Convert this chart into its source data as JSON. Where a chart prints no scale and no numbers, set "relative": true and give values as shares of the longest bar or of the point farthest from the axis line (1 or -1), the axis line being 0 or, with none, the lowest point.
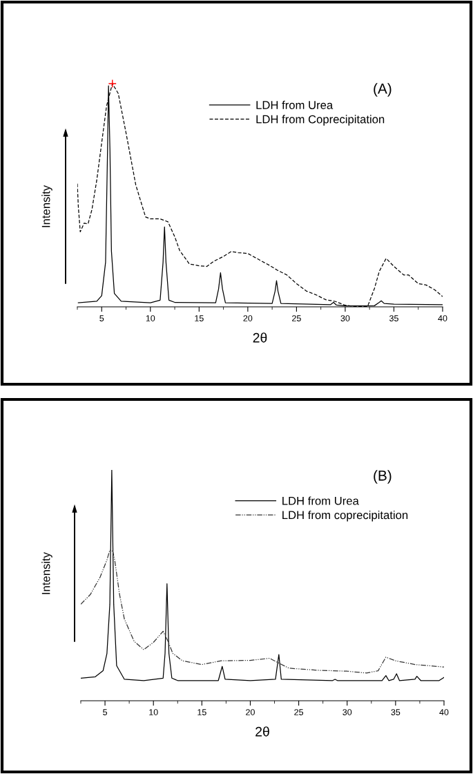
{
  "chart_data": [
    {
      "type": "line",
      "relative": true,
      "xlabel": "2θ",
      "ylabel": "Intensity",
      "annotations": [
        "(A)"
      ],
      "xlim": [
        2.5,
        40
      ],
      "xticks": [
        5,
        10,
        15,
        20,
        25,
        30,
        35,
        40
      ],
      "tick_labels": "x",
      "grid": false,
      "legend": "top right",
      "marker": "none",
      "series": [
        {
          "name": "LDH from Urea",
          "color": "#000000",
          "line_style": "solid",
          "x": [
            2.6,
            4.5,
            5.0,
            5.4,
            5.6,
            5.7,
            5.85,
            6.0,
            6.3,
            7,
            10,
            11.0,
            11.3,
            11.45,
            11.6,
            11.9,
            12.5,
            16.7,
            17.0,
            17.2,
            17.4,
            17.7,
            22.5,
            22.8,
            22.95,
            23.1,
            23.4,
            28.5,
            28.8,
            29.1,
            30,
            33,
            33.5,
            33.7,
            34,
            35,
            40
          ],
          "values": [
            0.018,
            0.025,
            0.05,
            0.2,
            0.7,
            0.99,
            0.7,
            0.25,
            0.06,
            0.025,
            0.018,
            0.03,
            0.2,
            0.358,
            0.2,
            0.03,
            0.02,
            0.018,
            0.08,
            0.153,
            0.08,
            0.018,
            0.015,
            0.07,
            0.117,
            0.07,
            0.015,
            0.01,
            0.02,
            0.008,
            0.004,
            0.005,
            0.02,
            0.027,
            0.015,
            0.012,
            0.01
          ]
        },
        {
          "name": "LDH from Coprecipitation",
          "color": "#000000",
          "line_style": "dashed",
          "x": [
            2.5,
            2.6,
            2.8,
            3.2,
            3.6,
            4.0,
            4.5,
            5.0,
            5.5,
            6.1,
            6.7,
            7.5,
            8.5,
            9.5,
            10,
            11,
            11.8,
            12.5,
            13,
            14,
            15,
            15.8,
            16.5,
            17.5,
            18.3,
            19,
            20,
            21,
            22.3,
            23,
            24,
            25,
            26,
            27,
            28,
            29,
            30,
            31,
            32.3,
            33,
            33.5,
            34.2,
            35,
            36,
            36.5,
            37.5,
            38.3,
            39.2,
            40
          ],
          "values": [
            0.552,
            0.45,
            0.336,
            0.375,
            0.372,
            0.436,
            0.569,
            0.735,
            0.9,
            1.0,
            0.956,
            0.779,
            0.546,
            0.403,
            0.394,
            0.394,
            0.381,
            0.314,
            0.253,
            0.192,
            0.184,
            0.181,
            0.204,
            0.226,
            0.248,
            0.243,
            0.239,
            0.215,
            0.184,
            0.165,
            0.143,
            0.104,
            0.071,
            0.054,
            0.032,
            0.024,
            0.007,
            0.002,
            0.002,
            0.082,
            0.159,
            0.217,
            0.181,
            0.143,
            0.143,
            0.104,
            0.098,
            0.076,
            0.046
          ]
        },
        {
          "type": "scatter",
          "color": "#ff0000",
          "marker": "cross",
          "x": [
            6.1
          ],
          "values": [
            1.0
          ]
        }
      ]
    },
    {
      "type": "line",
      "relative": true,
      "xlabel": "2θ",
      "ylabel": "Intensity",
      "annotations": [
        "(B)"
      ],
      "xlim": [
        2.5,
        40
      ],
      "xticks": [
        5,
        10,
        15,
        20,
        25,
        30,
        35,
        40
      ],
      "tick_labels": "x",
      "grid": false,
      "legend": "top right",
      "marker": "none",
      "series": [
        {
          "name": "LDH from Urea",
          "color": "#000000",
          "line_style": "solid",
          "x": [
            2.5,
            4,
            4.8,
            5.2,
            5.5,
            5.7,
            5.9,
            6.2,
            7,
            9,
            11,
            11.2,
            11.4,
            11.6,
            11.9,
            12.5,
            16.7,
            17.1,
            17.4,
            20,
            22.6,
            22.95,
            23.2,
            28.5,
            28.75,
            29,
            33.6,
            34,
            34.3,
            34.8,
            35.1,
            35.4,
            37.0,
            37.2,
            37.6,
            39.5,
            40
          ],
          "values": [
            0.098,
            0.104,
            0.13,
            0.205,
            0.418,
            1.0,
            0.418,
            0.152,
            0.093,
            0.0875,
            0.098,
            0.205,
            0.507,
            0.205,
            0.098,
            0.0875,
            0.0875,
            0.149,
            0.093,
            0.0875,
            0.093,
            0.2,
            0.093,
            0.0875,
            0.093,
            0.0875,
            0.0875,
            0.109,
            0.0875,
            0.093,
            0.117,
            0.0875,
            0.093,
            0.106,
            0.0875,
            0.0875,
            0.101
          ]
        },
        {
          "name": "LDH from coprecipitation",
          "color": "#333333",
          "line_style": "dashdot",
          "x": [
            2.5,
            3.5,
            4.5,
            5.2,
            5.5,
            5.8,
            6.0,
            6.5,
            7.0,
            8.0,
            9.0,
            10,
            11,
            11.5,
            12,
            13,
            15,
            17,
            20,
            22,
            23,
            24,
            27,
            30,
            32,
            33.2,
            34,
            35,
            37,
            40
          ],
          "values": [
            0.418,
            0.461,
            0.536,
            0.61,
            0.653,
            0.648,
            0.61,
            0.461,
            0.354,
            0.258,
            0.221,
            0.253,
            0.301,
            0.258,
            0.205,
            0.173,
            0.157,
            0.173,
            0.175,
            0.184,
            0.162,
            0.141,
            0.132,
            0.128,
            0.12,
            0.13,
            0.189,
            0.173,
            0.157,
            0.146
          ]
        }
      ]
    }
  ]
}
